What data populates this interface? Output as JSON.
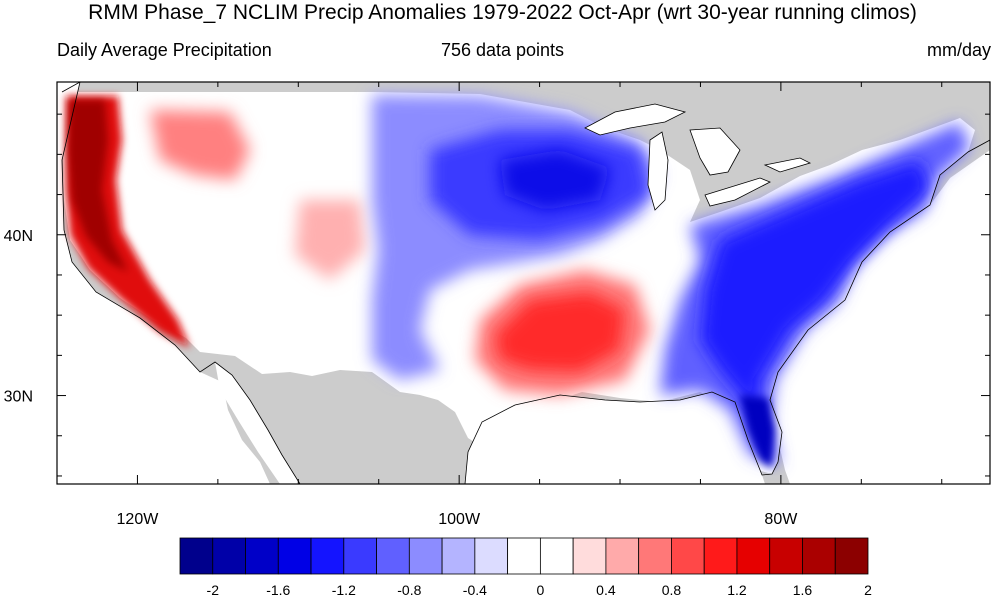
{
  "title": "RMM Phase_7 NCLIM Precip Anomalies 1979-2022 Oct-Apr (wrt 30-year running climos)",
  "subtitle_left": "Daily Average Precipitation",
  "subtitle_center": "756 data points",
  "subtitle_right": "mm/day",
  "map": {
    "lon_range": [
      -125,
      -67
    ],
    "lat_range": [
      24.5,
      49.5
    ],
    "lon_ticks": [
      {
        "value": -120,
        "label": "120W"
      },
      {
        "value": -100,
        "label": "100W"
      },
      {
        "value": -80,
        "label": "80W"
      }
    ],
    "lat_ticks": [
      {
        "value": 40,
        "label": "40N"
      },
      {
        "value": 30,
        "label": "30N"
      }
    ],
    "land_mask_color": "#cccccc",
    "ocean_color": "#ffffff"
  },
  "colorbar": {
    "colors": [
      "#00008c",
      "#0000a8",
      "#0000c8",
      "#0000e6",
      "#1414ff",
      "#3a3aff",
      "#6060ff",
      "#8c8cff",
      "#b4b4ff",
      "#dcdcff",
      "#ffffff",
      "#ffffff",
      "#ffdcdc",
      "#ffaaaa",
      "#ff7878",
      "#ff4848",
      "#ff1a1a",
      "#e60000",
      "#c80000",
      "#aa0000",
      "#8c0000"
    ],
    "labels": [
      "-2",
      "-1.6",
      "-1.2",
      "-0.8",
      "-0.4",
      "0",
      "0.4",
      "0.8",
      "1.2",
      "1.6",
      "2"
    ]
  }
}
